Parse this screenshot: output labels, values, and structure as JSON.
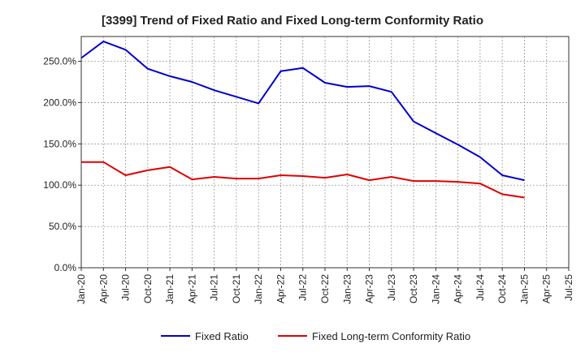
{
  "chart_data": {
    "type": "line",
    "title": "[3399]  Trend of Fixed Ratio and Fixed Long-term Conformity Ratio",
    "xlabel": "",
    "ylabel": "",
    "x_ticks": [
      "Jan-20",
      "Apr-20",
      "Jul-20",
      "Oct-20",
      "Jan-21",
      "Apr-21",
      "Jul-21",
      "Oct-21",
      "Jan-22",
      "Apr-22",
      "Jul-22",
      "Oct-22",
      "Jan-23",
      "Apr-23",
      "Jul-23",
      "Oct-23",
      "Jan-24",
      "Apr-24",
      "Jul-24",
      "Oct-24",
      "Jan-25",
      "Apr-25",
      "Jul-25"
    ],
    "y_ticks": [
      "0.0%",
      "50.0%",
      "100.0%",
      "150.0%",
      "200.0%",
      "250.0%"
    ],
    "ylim": [
      0,
      280
    ],
    "grid": true,
    "legend_position": "bottom",
    "series": [
      {
        "name": "Fixed Ratio",
        "color": "#0000cc",
        "values": [
          254,
          274,
          264,
          241,
          232,
          225,
          215,
          207,
          199,
          238,
          242,
          224,
          219,
          220,
          213,
          177,
          163,
          149,
          134,
          112,
          106
        ]
      },
      {
        "name": "Fixed Long-term Conformity Ratio",
        "color": "#e00000",
        "values": [
          128,
          128,
          112,
          118,
          122,
          107,
          110,
          108,
          108,
          112,
          111,
          109,
          113,
          106,
          110,
          105,
          105,
          104,
          102,
          89,
          85
        ]
      }
    ]
  }
}
